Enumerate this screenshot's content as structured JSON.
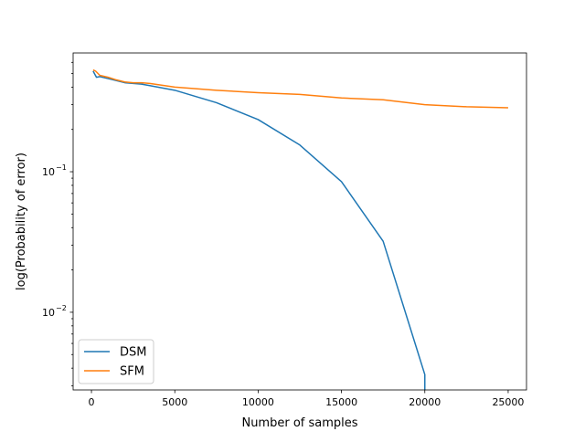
{
  "chart_data": {
    "type": "line",
    "title": "",
    "xlabel": "Number of samples",
    "ylabel": "log(Probability of error)",
    "xscale": "linear",
    "yscale": "log",
    "xlim": [
      -1100,
      26100
    ],
    "ylim": [
      0.0028,
      0.7
    ],
    "grid": false,
    "legend_position": "lower-left",
    "x_ticks": [
      {
        "value": 0,
        "label": "0"
      },
      {
        "value": 5000,
        "label": "5000"
      },
      {
        "value": 10000,
        "label": "10000"
      },
      {
        "value": 15000,
        "label": "15000"
      },
      {
        "value": 20000,
        "label": "20000"
      },
      {
        "value": 25000,
        "label": "25000"
      }
    ],
    "y_ticks": [
      {
        "value": 0.01,
        "base": "10",
        "exp": "−2"
      },
      {
        "value": 0.1,
        "base": "10",
        "exp": "−1"
      }
    ],
    "y_minor_ticks": [
      0.003,
      0.004,
      0.005,
      0.006,
      0.007,
      0.008,
      0.009,
      0.02,
      0.03,
      0.04,
      0.05,
      0.06,
      0.07,
      0.08,
      0.09,
      0.2,
      0.3,
      0.4,
      0.5,
      0.6
    ],
    "series": [
      {
        "name": "DSM",
        "color": "#1f77b4",
        "x": [
          100,
          300,
          500,
          1000,
          1500,
          2000,
          2500,
          3000,
          3500,
          5000,
          7500,
          10000,
          12500,
          15000,
          17500,
          20000,
          20000
        ],
        "y": [
          0.52,
          0.47,
          0.475,
          0.46,
          0.445,
          0.43,
          0.425,
          0.42,
          0.41,
          0.38,
          0.31,
          0.235,
          0.155,
          0.085,
          0.032,
          0.0036,
          0.0028
        ]
      },
      {
        "name": "SFM",
        "color": "#ff7f0e",
        "x": [
          100,
          250,
          500,
          1000,
          1500,
          2000,
          2500,
          3000,
          3500,
          5000,
          7500,
          10000,
          12500,
          15000,
          17500,
          20000,
          22500,
          25000
        ],
        "y": [
          0.53,
          0.52,
          0.485,
          0.47,
          0.45,
          0.435,
          0.43,
          0.43,
          0.425,
          0.4,
          0.38,
          0.365,
          0.355,
          0.335,
          0.325,
          0.3,
          0.29,
          0.285
        ]
      }
    ]
  }
}
